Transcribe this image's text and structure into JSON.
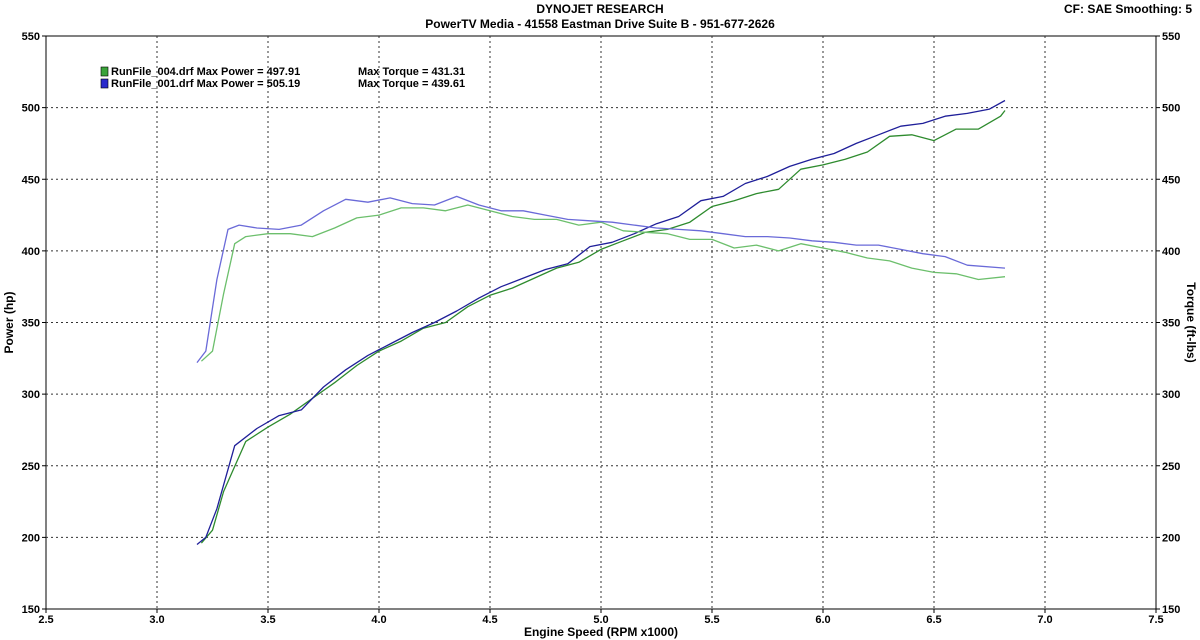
{
  "header": {
    "title": "DYNOJET RESEARCH",
    "subtitle": "PowerTV Media - 41558 Eastman Drive Suite B - 951-677-2626",
    "corner": "CF: SAE  Smoothing: 5"
  },
  "chart_data": {
    "type": "line",
    "xlabel": "Engine Speed (RPM x1000)",
    "ylabel": "Power (hp)",
    "y2label": "Torque (ft-lbs)",
    "xlim": [
      2.5,
      7.5
    ],
    "ylim": [
      150,
      550
    ],
    "y2lim": [
      150,
      550
    ],
    "xticks": [
      "2.5",
      "3.0",
      "3.5",
      "4.0",
      "4.5",
      "5.0",
      "5.5",
      "6.0",
      "6.5",
      "7.0",
      "7.5"
    ],
    "yticks": [
      "150",
      "200",
      "250",
      "300",
      "350",
      "400",
      "450",
      "500",
      "550"
    ],
    "grid": true,
    "legend_position": "top-left",
    "legend": [
      {
        "file": "RunFile_004.drf",
        "power_text": "Max Power = 497.91",
        "torque_text": "Max Torque = 431.31",
        "color": "#3aa33a"
      },
      {
        "file": "RunFile_001.drf",
        "power_text": "Max Power = 505.19",
        "torque_text": "Max Torque = 439.61",
        "color": "#2b2bcc"
      }
    ],
    "series": [
      {
        "name": "RunFile_004.drf",
        "metric": "power",
        "color": "#2e8b2e",
        "x": [
          3.2,
          3.25,
          3.3,
          3.4,
          3.5,
          3.6,
          3.7,
          3.8,
          3.9,
          4.0,
          4.1,
          4.2,
          4.3,
          4.4,
          4.5,
          4.6,
          4.7,
          4.8,
          4.9,
          5.0,
          5.1,
          5.2,
          5.3,
          5.4,
          5.5,
          5.6,
          5.7,
          5.8,
          5.9,
          6.0,
          6.1,
          6.2,
          6.3,
          6.4,
          6.5,
          6.6,
          6.7,
          6.8,
          6.82
        ],
        "y": [
          196,
          205,
          232,
          267,
          277,
          286,
          297,
          308,
          320,
          330,
          337,
          346,
          350,
          361,
          369,
          374,
          381,
          388,
          392,
          401,
          407,
          413,
          415,
          420,
          431,
          435,
          440,
          443,
          457,
          460,
          464,
          469,
          480,
          481,
          477,
          485,
          485,
          494,
          498
        ]
      },
      {
        "name": "RunFile_001.drf",
        "metric": "power",
        "color": "#1f1f99",
        "x": [
          3.18,
          3.22,
          3.27,
          3.35,
          3.45,
          3.55,
          3.65,
          3.75,
          3.85,
          3.95,
          4.05,
          4.15,
          4.25,
          4.35,
          4.45,
          4.55,
          4.65,
          4.75,
          4.85,
          4.95,
          5.05,
          5.15,
          5.25,
          5.35,
          5.45,
          5.55,
          5.65,
          5.75,
          5.85,
          5.95,
          6.05,
          6.15,
          6.25,
          6.35,
          6.45,
          6.55,
          6.65,
          6.75,
          6.82
        ],
        "y": [
          195,
          200,
          220,
          264,
          276,
          285,
          289,
          305,
          317,
          327,
          335,
          343,
          350,
          358,
          367,
          375,
          381,
          387,
          391,
          403,
          406,
          412,
          419,
          424,
          435,
          438,
          447,
          452,
          459,
          464,
          468,
          475,
          481,
          487,
          489,
          494,
          496,
          499,
          505
        ]
      },
      {
        "name": "RunFile_004.drf",
        "metric": "torque",
        "color": "#6cbf6c",
        "x": [
          3.2,
          3.25,
          3.3,
          3.35,
          3.4,
          3.5,
          3.6,
          3.7,
          3.8,
          3.9,
          4.0,
          4.1,
          4.2,
          4.3,
          4.4,
          4.5,
          4.6,
          4.7,
          4.8,
          4.9,
          5.0,
          5.1,
          5.2,
          5.3,
          5.4,
          5.5,
          5.6,
          5.7,
          5.8,
          5.9,
          6.0,
          6.1,
          6.2,
          6.3,
          6.4,
          6.5,
          6.6,
          6.7,
          6.82
        ],
        "y": [
          323,
          330,
          370,
          405,
          410,
          412,
          412,
          410,
          416,
          423,
          425,
          430,
          430,
          428,
          432,
          428,
          424,
          422,
          422,
          418,
          420,
          414,
          413,
          412,
          408,
          408,
          402,
          404,
          400,
          405,
          402,
          399,
          395,
          393,
          388,
          385,
          384,
          380,
          382
        ]
      },
      {
        "name": "RunFile_001.drf",
        "metric": "torque",
        "color": "#6a6ad8",
        "x": [
          3.18,
          3.22,
          3.27,
          3.32,
          3.37,
          3.45,
          3.55,
          3.65,
          3.75,
          3.85,
          3.95,
          4.05,
          4.15,
          4.25,
          4.35,
          4.45,
          4.55,
          4.65,
          4.75,
          4.85,
          4.95,
          5.05,
          5.15,
          5.25,
          5.35,
          5.45,
          5.55,
          5.65,
          5.75,
          5.85,
          5.95,
          6.05,
          6.15,
          6.25,
          6.35,
          6.45,
          6.55,
          6.65,
          6.82
        ],
        "y": [
          322,
          330,
          380,
          415,
          418,
          416,
          415,
          418,
          428,
          436,
          434,
          437,
          433,
          432,
          438,
          432,
          428,
          428,
          425,
          422,
          421,
          420,
          418,
          416,
          415,
          414,
          412,
          410,
          410,
          409,
          407,
          406,
          404,
          404,
          401,
          398,
          396,
          390,
          388
        ]
      }
    ]
  }
}
